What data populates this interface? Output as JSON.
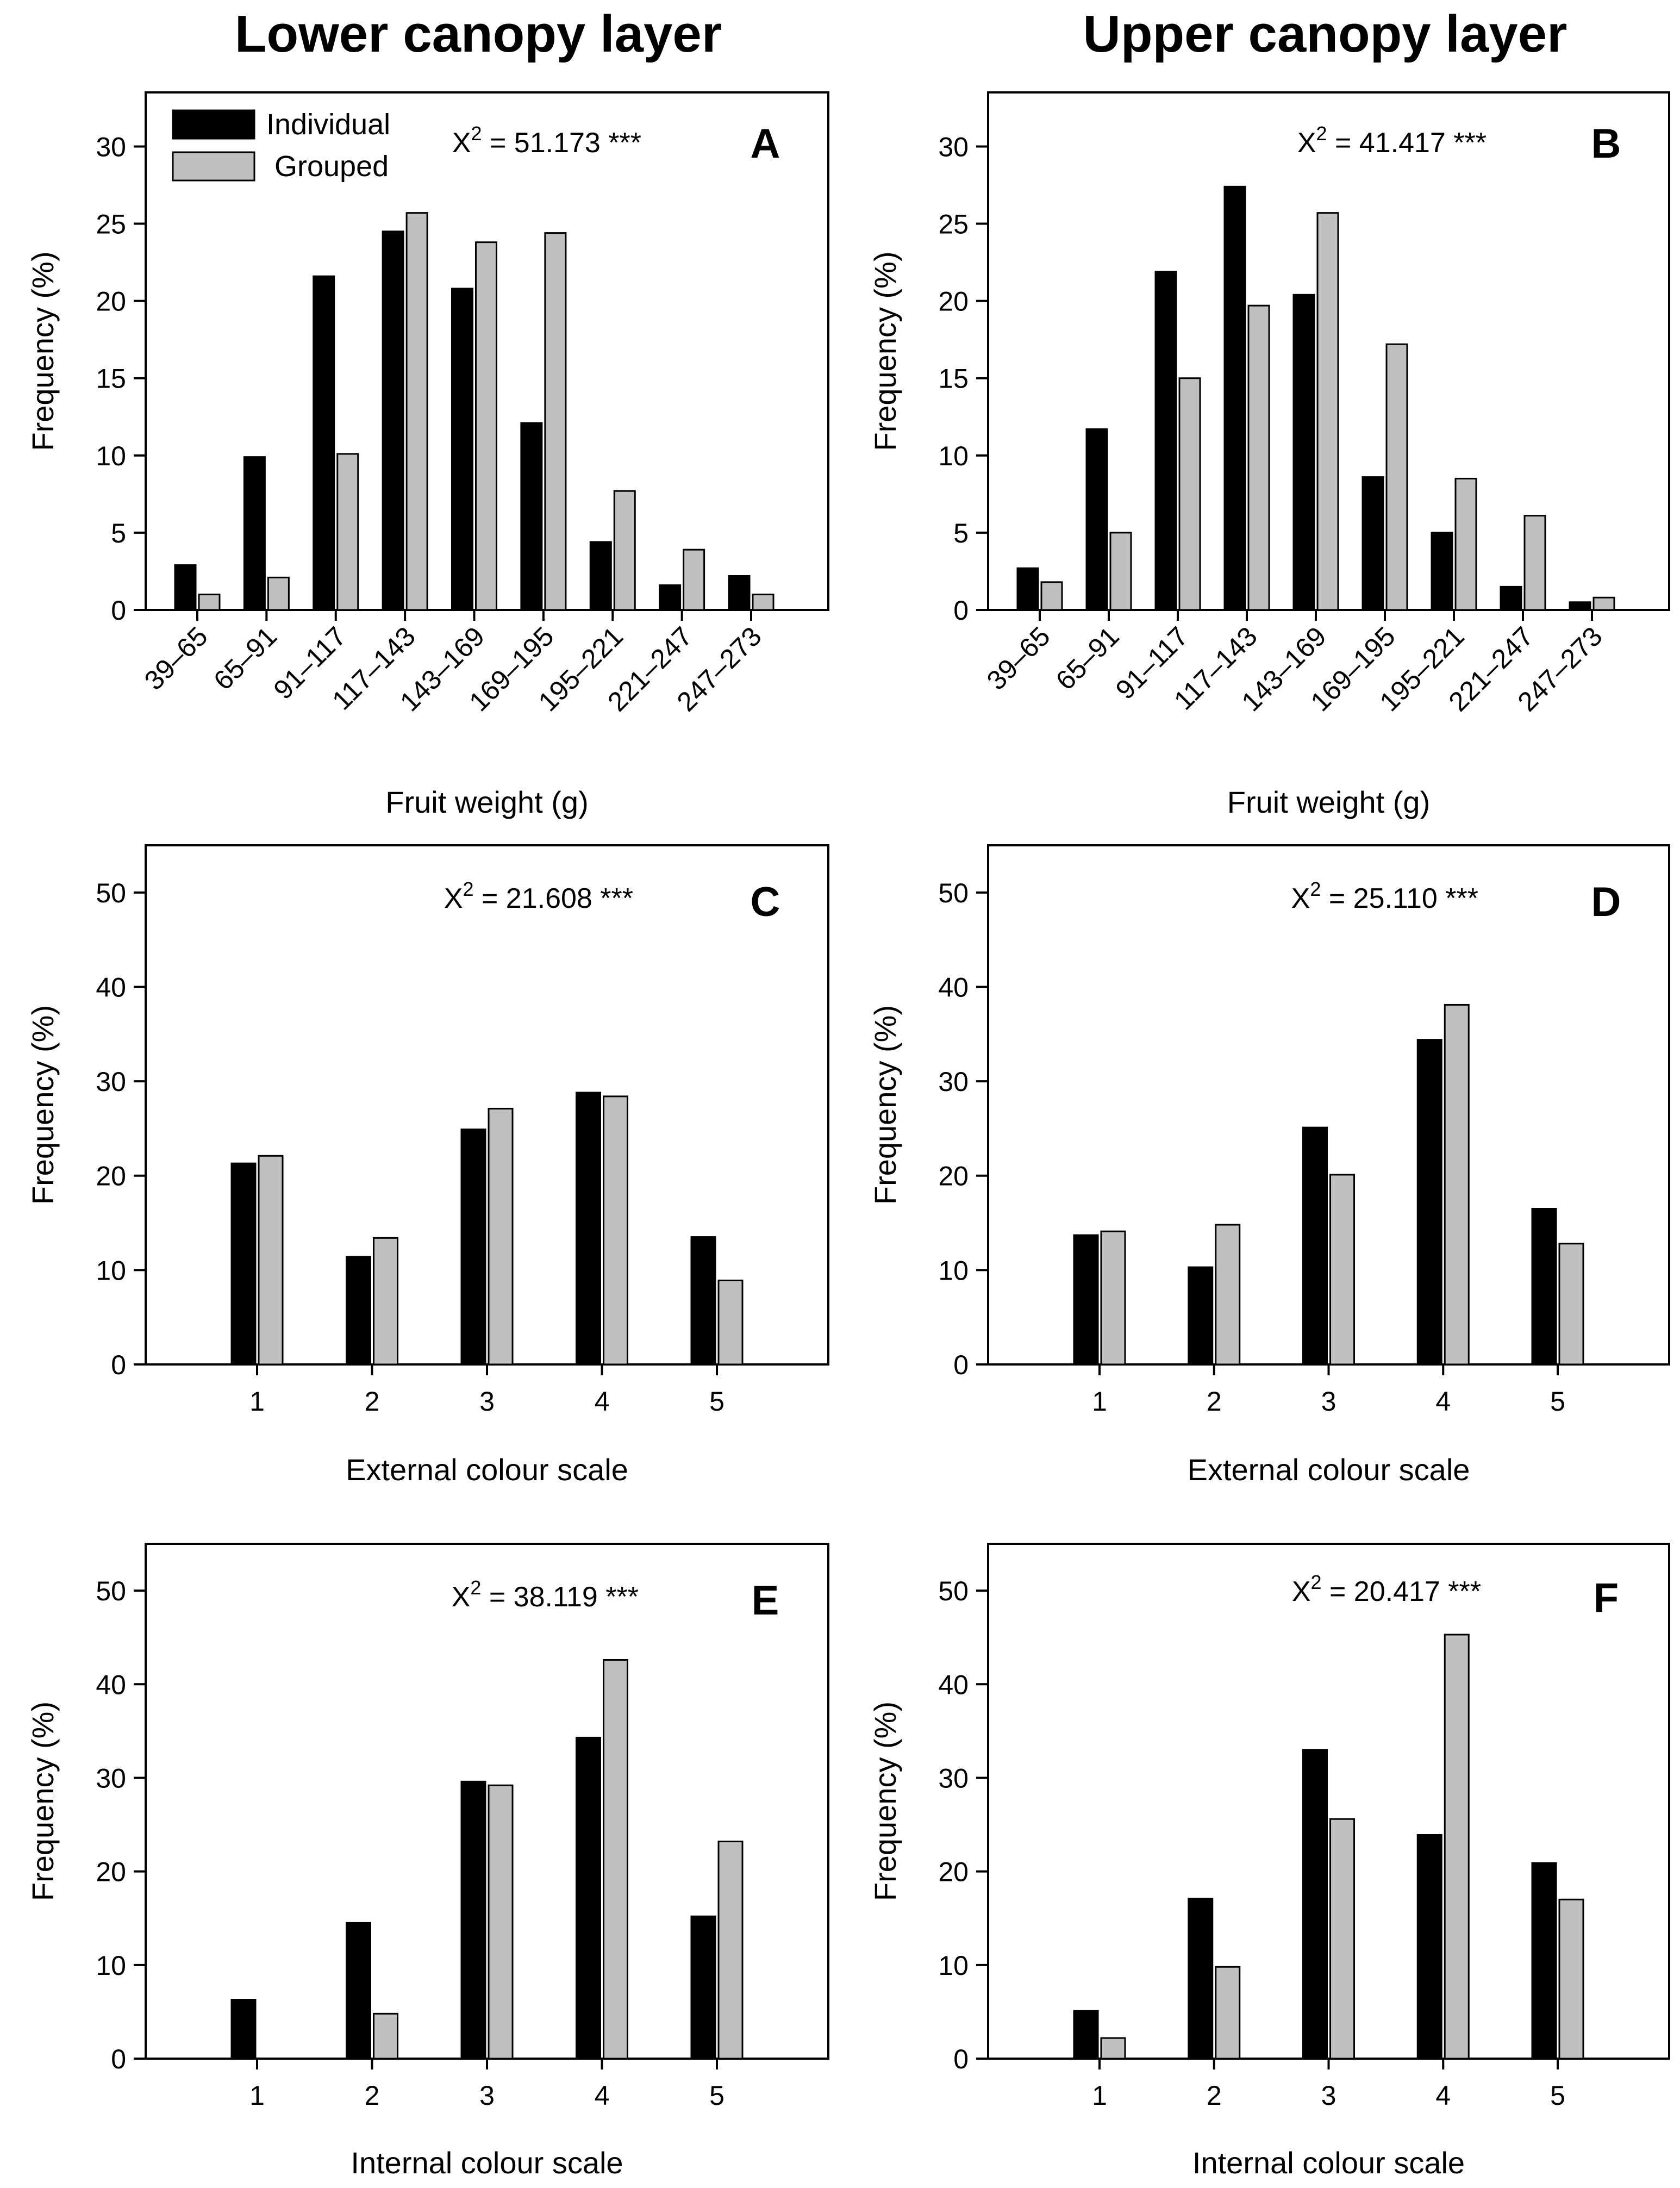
{
  "column_titles": {
    "left": "Lower canopy layer",
    "right": "Upper canopy layer"
  },
  "legend": {
    "individual": "Individual",
    "grouped": "Grouped"
  },
  "colors": {
    "individual": "#000000",
    "grouped": "#c0c0c0",
    "axis": "#000000"
  },
  "chart_data": [
    {
      "panel": "A",
      "type": "bar",
      "categories": [
        "39–65",
        "65–91",
        "91–117",
        "117–143",
        "143–169",
        "169–195",
        "195–221",
        "221–247",
        "247–273"
      ],
      "series": [
        {
          "name": "Individual",
          "values": [
            2.9,
            9.9,
            21.6,
            24.5,
            20.8,
            12.1,
            4.4,
            1.6,
            2.2
          ]
        },
        {
          "name": "Grouped",
          "values": [
            1.0,
            2.1,
            10.1,
            25.7,
            23.8,
            24.4,
            7.7,
            3.9,
            1.0
          ]
        }
      ],
      "xlabel": "Fruit weight (g)",
      "ylabel": "Frequency (%)",
      "ylim": [
        0,
        33.5
      ],
      "yticks": [
        0,
        5,
        10,
        15,
        20,
        25,
        30
      ],
      "stat_prefix": "X",
      "stat_sup": "2",
      "stat_value": " = 51.173 ***"
    },
    {
      "panel": "B",
      "type": "bar",
      "categories": [
        "39–65",
        "65–91",
        "91–117",
        "117–143",
        "143–169",
        "169–195",
        "195–221",
        "221–247",
        "247–273"
      ],
      "series": [
        {
          "name": "Individual",
          "values": [
            2.7,
            11.7,
            21.9,
            27.4,
            20.4,
            8.6,
            5.0,
            1.5,
            0.5
          ]
        },
        {
          "name": "Grouped",
          "values": [
            1.8,
            5.0,
            15.0,
            19.7,
            25.7,
            17.2,
            8.5,
            6.1,
            0.8
          ]
        }
      ],
      "xlabel": "Fruit weight (g)",
      "ylabel": "Frequency (%)",
      "ylim": [
        0,
        33.5
      ],
      "yticks": [
        0,
        5,
        10,
        15,
        20,
        25,
        30
      ],
      "stat_prefix": "X",
      "stat_sup": "2",
      "stat_value": " = 41.417 ***"
    },
    {
      "panel": "C",
      "type": "bar",
      "categories": [
        "1",
        "2",
        "3",
        "4",
        "5"
      ],
      "series": [
        {
          "name": "Individual",
          "values": [
            21.3,
            11.4,
            24.9,
            28.8,
            13.5
          ]
        },
        {
          "name": "Grouped",
          "values": [
            22.1,
            13.4,
            27.1,
            28.4,
            8.9
          ]
        }
      ],
      "xlabel": "External colour scale",
      "ylabel": "Frequency (%)",
      "ylim": [
        0,
        55
      ],
      "yticks": [
        0,
        10,
        20,
        30,
        40,
        50
      ],
      "stat_prefix": "X",
      "stat_sup": "2",
      "stat_value": " = 21.608 ***"
    },
    {
      "panel": "D",
      "type": "bar",
      "categories": [
        "1",
        "2",
        "3",
        "4",
        "5"
      ],
      "series": [
        {
          "name": "Individual",
          "values": [
            13.7,
            10.3,
            25.1,
            34.4,
            16.5
          ]
        },
        {
          "name": "Grouped",
          "values": [
            14.1,
            14.8,
            20.1,
            38.1,
            12.8
          ]
        }
      ],
      "xlabel": "External colour scale",
      "ylabel": "Frequency (%)",
      "ylim": [
        0,
        55
      ],
      "yticks": [
        0,
        10,
        20,
        30,
        40,
        50
      ],
      "stat_prefix": "X",
      "stat_sup": "2",
      "stat_value": " = 25.110 ***"
    },
    {
      "panel": "E",
      "type": "bar",
      "categories": [
        "1",
        "2",
        "3",
        "4",
        "5"
      ],
      "series": [
        {
          "name": "Individual",
          "values": [
            6.3,
            14.5,
            29.6,
            34.3,
            15.2
          ]
        },
        {
          "name": "Grouped",
          "values": [
            0,
            4.8,
            29.2,
            42.6,
            23.2
          ]
        }
      ],
      "xlabel": "Internal colour scale",
      "ylabel": "Frequency (%)",
      "ylim": [
        0,
        55
      ],
      "yticks": [
        0,
        10,
        20,
        30,
        40,
        50
      ],
      "stat_prefix": "X",
      "stat_sup": "2",
      "stat_value": " = 38.119 ***"
    },
    {
      "panel": "F",
      "type": "bar",
      "categories": [
        "1",
        "2",
        "3",
        "4",
        "5"
      ],
      "series": [
        {
          "name": "Individual",
          "values": [
            5.1,
            17.1,
            33.0,
            23.9,
            20.9
          ]
        },
        {
          "name": "Grouped",
          "values": [
            2.2,
            9.8,
            25.6,
            45.3,
            17.0
          ]
        }
      ],
      "xlabel": "Internal colour scale",
      "ylabel": "Frequency (%)",
      "ylim": [
        0,
        55
      ],
      "yticks": [
        0,
        10,
        20,
        30,
        40,
        50
      ],
      "stat_prefix": "X",
      "stat_sup": "2",
      "stat_value": " = 20.417 ***"
    }
  ]
}
